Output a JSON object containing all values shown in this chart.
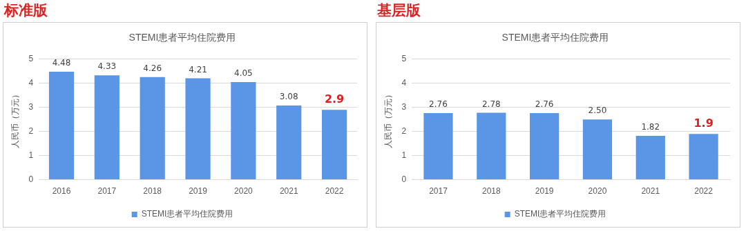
{
  "chart_data": [
    {
      "type": "bar",
      "title": "STEMI患者平均住院费用",
      "ylabel": "人民币（万元）",
      "annotations": [
        "标准版"
      ],
      "categories": [
        "2016",
        "2017",
        "2018",
        "2019",
        "2020",
        "2021",
        "2022"
      ],
      "series": [
        {
          "name": "STEMI患者平均住院费用",
          "color": "#5b96e6",
          "values": [
            4.48,
            4.33,
            4.26,
            4.21,
            4.05,
            3.08,
            2.9
          ],
          "value_labels": [
            "4.48",
            "4.33",
            "4.26",
            "4.21",
            "4.05",
            "3.08",
            "2.9"
          ]
        }
      ],
      "ylim": [
        0,
        5
      ],
      "yticks": [
        0,
        1,
        2,
        3,
        4,
        5
      ],
      "grid": "y",
      "legend": "bottom"
    },
    {
      "type": "bar",
      "title": "STEMI患者平均住院费用",
      "ylabel": "人民币（万元）",
      "annotations": [
        "基层版"
      ],
      "categories": [
        "2017",
        "2018",
        "2019",
        "2020",
        "2021",
        "2022"
      ],
      "series": [
        {
          "name": "STEMI患者平均住院费用",
          "color": "#5b96e6",
          "values": [
            2.76,
            2.78,
            2.76,
            2.5,
            1.82,
            1.9
          ],
          "value_labels": [
            "2.76",
            "2.78",
            "2.76",
            "2.50",
            "1.82",
            "1.9"
          ]
        }
      ],
      "ylim": [
        0,
        5
      ],
      "yticks": [
        0,
        1,
        2,
        3,
        4,
        5
      ],
      "grid": "y",
      "legend": "bottom"
    }
  ]
}
